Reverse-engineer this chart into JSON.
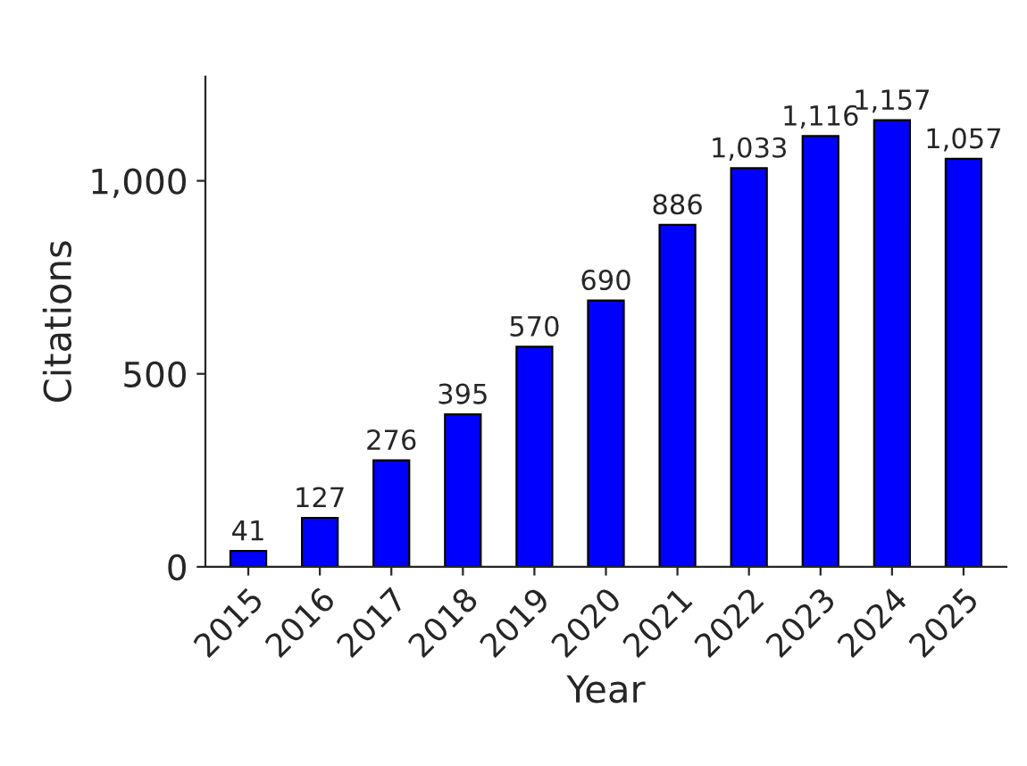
{
  "chart_data": {
    "type": "bar",
    "xlabel": "Year",
    "ylabel": "Citations",
    "categories": [
      "2015",
      "2016",
      "2017",
      "2018",
      "2019",
      "2020",
      "2021",
      "2022",
      "2023",
      "2024",
      "2025"
    ],
    "values": [
      41,
      127,
      276,
      395,
      570,
      690,
      886,
      1033,
      1116,
      1157,
      1057
    ],
    "value_labels": [
      "41",
      "127",
      "276",
      "395",
      "570",
      "690",
      "886",
      "1,033",
      "1,116",
      "1,157",
      "1,057"
    ],
    "color": "#0000ff",
    "ylim": [
      0,
      1270
    ],
    "yticks": [
      {
        "value": 0,
        "label": "0"
      },
      {
        "value": 500,
        "label": "500"
      },
      {
        "value": 1000,
        "label": "1,000"
      }
    ],
    "grid": false,
    "legend": false
  }
}
